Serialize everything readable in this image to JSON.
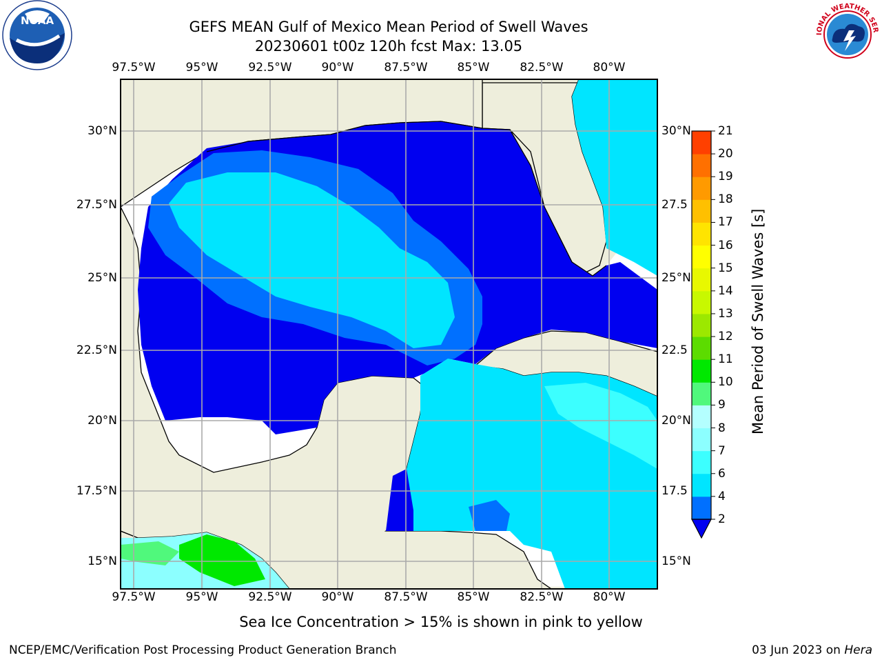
{
  "title": {
    "line1": "GEFS MEAN Gulf of Mexico Mean Period of Swell Waves",
    "line2": "20230601 t00z 120h fcst   Max: 13.05"
  },
  "map": {
    "lon_ticks": [
      "97.5°W",
      "95°W",
      "92.5°W",
      "90°W",
      "87.5°W",
      "85°W",
      "82.5°W",
      "80°W"
    ],
    "lat_ticks_left": [
      "30°N",
      "27.5°N",
      "25°N",
      "22.5°N",
      "20°N",
      "17.5°N",
      "15°N"
    ],
    "lat_ticks_right": [
      "30°N",
      "27.5",
      "25°N",
      "22.5",
      "20°N",
      "17.5",
      "15°N"
    ],
    "extent": {
      "lon_min": -98,
      "lon_max": -78.3,
      "lat_min": 14,
      "lat_max": 31.8
    },
    "land_color": "#eeeedc",
    "water_masked_color": "#ffffff"
  },
  "colorbar": {
    "title": "Mean Period of Swell Waves [s]",
    "ticks": [
      "2",
      "4",
      "6",
      "7",
      "8",
      "9",
      "10",
      "11",
      "12",
      "13",
      "14",
      "15",
      "16",
      "17",
      "18",
      "19",
      "20",
      "21"
    ],
    "colors": [
      "#0070ff",
      "#00e5ff",
      "#3cffff",
      "#8cffff",
      "#b4ffff",
      "#50f87c",
      "#00e800",
      "#5cdc00",
      "#9ce800",
      "#c8f800",
      "#e8f800",
      "#ffff00",
      "#ffe400",
      "#ffc000",
      "#ff9a00",
      "#ff7000",
      "#ff4000",
      "#ff0000"
    ],
    "under_color": "#0000f0"
  },
  "logos": {
    "noaa_text": "NOAA",
    "nws_text": "NATIONAL WEATHER SERVICE"
  },
  "note": "Sea Ice Concentration > 15% is shown in pink to yellow",
  "footer": {
    "left": "NCEP/EMC/Verification Post Processing Product Generation Branch",
    "right_date": "03 Jun 2023 on ",
    "right_host": "Hera"
  }
}
